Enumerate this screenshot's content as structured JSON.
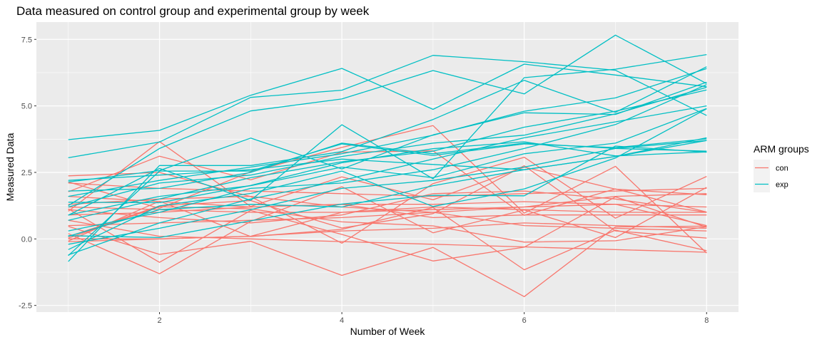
{
  "chart_data": {
    "type": "line",
    "title": "Data measured on control group and experimental group by week",
    "xlabel": "Number of Week",
    "ylabel": "Measured Data",
    "xlim": [
      0.65,
      8.35
    ],
    "ylim": [
      -2.75,
      8.15
    ],
    "x_ticks": [
      2,
      4,
      6,
      8
    ],
    "y_ticks": [
      -2.5,
      0.0,
      2.5,
      5.0,
      7.5
    ],
    "y_tick_labels": [
      "-2.5",
      "0.0",
      "2.5",
      "5.0",
      "7.5"
    ],
    "grid": true,
    "legend": {
      "title": "ARM groups",
      "position": "right",
      "entries": [
        {
          "label": "con",
          "color": "#F8766D"
        },
        {
          "label": "exp",
          "color": "#00BFC4"
        }
      ]
    },
    "x": [
      1,
      2,
      3,
      4,
      5,
      6,
      7,
      8
    ],
    "series": [
      {
        "group": "con",
        "values": [
          0.2,
          -1.31,
          0.66,
          1.96,
          0.23,
          1.09,
          0.05,
          1.94
        ]
      },
      {
        "group": "con",
        "values": [
          1.13,
          -0.88,
          1.07,
          0.17,
          -0.83,
          -0.31,
          1.58,
          0.44
        ]
      },
      {
        "group": "con",
        "values": [
          1.77,
          3.11,
          2.22,
          3.26,
          3.31,
          0.89,
          1.88,
          1.01
        ]
      },
      {
        "group": "con",
        "values": [
          1.04,
          3.66,
          1.22,
          2.33,
          1.47,
          2.7,
          1.87,
          1.66
        ]
      },
      {
        "group": "con",
        "values": [
          0.47,
          -0.58,
          -0.09,
          -1.37,
          -0.32,
          -2.17,
          0.45,
          0.48
        ]
      },
      {
        "group": "con",
        "values": [
          2.37,
          2.5,
          1.59,
          -0.16,
          2.08,
          3.07,
          0.78,
          2.35
        ]
      },
      {
        "group": "con",
        "values": [
          0.03,
          1.21,
          1.13,
          0.64,
          0.49,
          -0.12,
          -0.07,
          0.46
        ]
      },
      {
        "group": "con",
        "values": [
          -0.08,
          1.42,
          0.09,
          0.36,
          1.18,
          -1.16,
          0.33,
          -0.44
        ]
      },
      {
        "group": "con",
        "values": [
          0.08,
          1.24,
          1.44,
          0.41,
          0.95,
          2.75,
          0.3,
          0.03
        ]
      },
      {
        "group": "con",
        "values": [
          2.14,
          1.15,
          2.52,
          3.44,
          4.26,
          0.97,
          2.73,
          -0.53
        ]
      },
      {
        "group": "con",
        "values": [
          1.2,
          1.1,
          1.0,
          1.0,
          1.2,
          1.1,
          1.0,
          1.0
        ]
      },
      {
        "group": "con",
        "values": [
          2.1,
          1.9,
          1.8,
          1.7,
          1.6,
          1.7,
          1.8,
          1.9
        ]
      },
      {
        "group": "con",
        "values": [
          0.9,
          1.0,
          1.2,
          1.3,
          0.8,
          0.9,
          0.9,
          0.9
        ]
      },
      {
        "group": "con",
        "values": [
          0.5,
          0.6,
          0.7,
          0.8,
          1.0,
          0.5,
          0.4,
          0.3
        ]
      },
      {
        "group": "con",
        "values": [
          1.3,
          1.5,
          1.6,
          1.2,
          1.0,
          1.2,
          1.6,
          1.7
        ]
      },
      {
        "group": "con",
        "values": [
          1.1,
          0.8,
          0.6,
          0.9,
          1.7,
          1.8,
          1.5,
          1.0
        ]
      },
      {
        "group": "con",
        "values": [
          -0.1,
          0.0,
          0.1,
          1.0,
          1.1,
          1.2,
          1.3,
          0.5
        ]
      },
      {
        "group": "con",
        "values": [
          0.7,
          0.1,
          0.0,
          -0.1,
          -0.2,
          -0.3,
          -0.4,
          -0.5
        ]
      },
      {
        "group": "con",
        "values": [
          1.6,
          1.4,
          1.2,
          1.3,
          1.3,
          1.4,
          1.3,
          1.2
        ]
      },
      {
        "group": "con",
        "values": [
          0.0,
          0.0,
          0.1,
          0.3,
          0.4,
          0.6,
          0.5,
          0.4
        ]
      },
      {
        "group": "exp",
        "values": [
          3.73,
          4.08,
          5.4,
          6.41,
          4.87,
          6.57,
          6.16,
          5.72
        ]
      },
      {
        "group": "exp",
        "values": [
          3.05,
          3.64,
          5.32,
          5.59,
          6.9,
          6.66,
          6.34,
          4.64
        ]
      },
      {
        "group": "exp",
        "values": [
          1.25,
          3.4,
          4.81,
          5.26,
          6.33,
          5.45,
          7.66,
          5.84
        ]
      },
      {
        "group": "exp",
        "values": [
          0.89,
          2.65,
          1.45,
          4.29,
          2.26,
          6.06,
          6.38,
          6.93
        ]
      },
      {
        "group": "exp",
        "values": [
          -0.85,
          2.76,
          2.76,
          3.28,
          4.49,
          5.96,
          4.76,
          6.47
        ]
      },
      {
        "group": "exp",
        "values": [
          2.14,
          2.57,
          3.79,
          2.63,
          3.91,
          4.74,
          4.68,
          5.89
        ]
      },
      {
        "group": "exp",
        "values": [
          -0.63,
          2.55,
          2.55,
          3.57,
          3.14,
          3.57,
          3.43,
          3.76
        ]
      },
      {
        "group": "exp",
        "values": [
          1.38,
          1.36,
          2.01,
          2.86,
          3.39,
          3.65,
          3.12,
          3.27
        ]
      },
      {
        "group": "exp",
        "values": [
          0.12,
          0.05,
          0.68,
          1.31,
          1.64,
          1.62,
          3.49,
          3.26
        ]
      },
      {
        "group": "exp",
        "values": [
          -0.4,
          1.24,
          1.71,
          2.55,
          1.22,
          1.88,
          3.04,
          4.89
        ]
      },
      {
        "group": "exp",
        "values": [
          0.7,
          1.5,
          2.3,
          2.9,
          3.3,
          4.2,
          4.8,
          5.6
        ]
      },
      {
        "group": "exp",
        "values": [
          2.2,
          2.4,
          2.6,
          3.0,
          2.8,
          2.6,
          3.1,
          3.8
        ]
      },
      {
        "group": "exp",
        "values": [
          0.3,
          1.0,
          1.9,
          2.1,
          2.6,
          3.4,
          4.3,
          5.8
        ]
      },
      {
        "group": "exp",
        "values": [
          1.2,
          2.1,
          2.4,
          3.1,
          3.6,
          3.9,
          4.7,
          5.7
        ]
      },
      {
        "group": "exp",
        "values": [
          -0.2,
          0.4,
          1.1,
          1.9,
          2.2,
          2.7,
          3.4,
          3.7
        ]
      },
      {
        "group": "exp",
        "values": [
          1.6,
          2.2,
          2.7,
          3.2,
          3.9,
          4.8,
          5.3,
          6.4
        ]
      },
      {
        "group": "exp",
        "values": [
          0.9,
          1.6,
          2.0,
          2.7,
          2.3,
          3.2,
          3.6,
          4.9
        ]
      },
      {
        "group": "exp",
        "values": [
          0.1,
          1.1,
          1.3,
          1.2,
          2.0,
          2.6,
          3.1,
          3.7
        ]
      },
      {
        "group": "exp",
        "values": [
          1.8,
          1.9,
          2.5,
          3.6,
          3.2,
          3.6,
          3.4,
          3.3
        ]
      },
      {
        "group": "exp",
        "values": [
          -0.6,
          0.6,
          1.5,
          2.2,
          3.0,
          3.8,
          4.4,
          5.0
        ]
      }
    ]
  }
}
